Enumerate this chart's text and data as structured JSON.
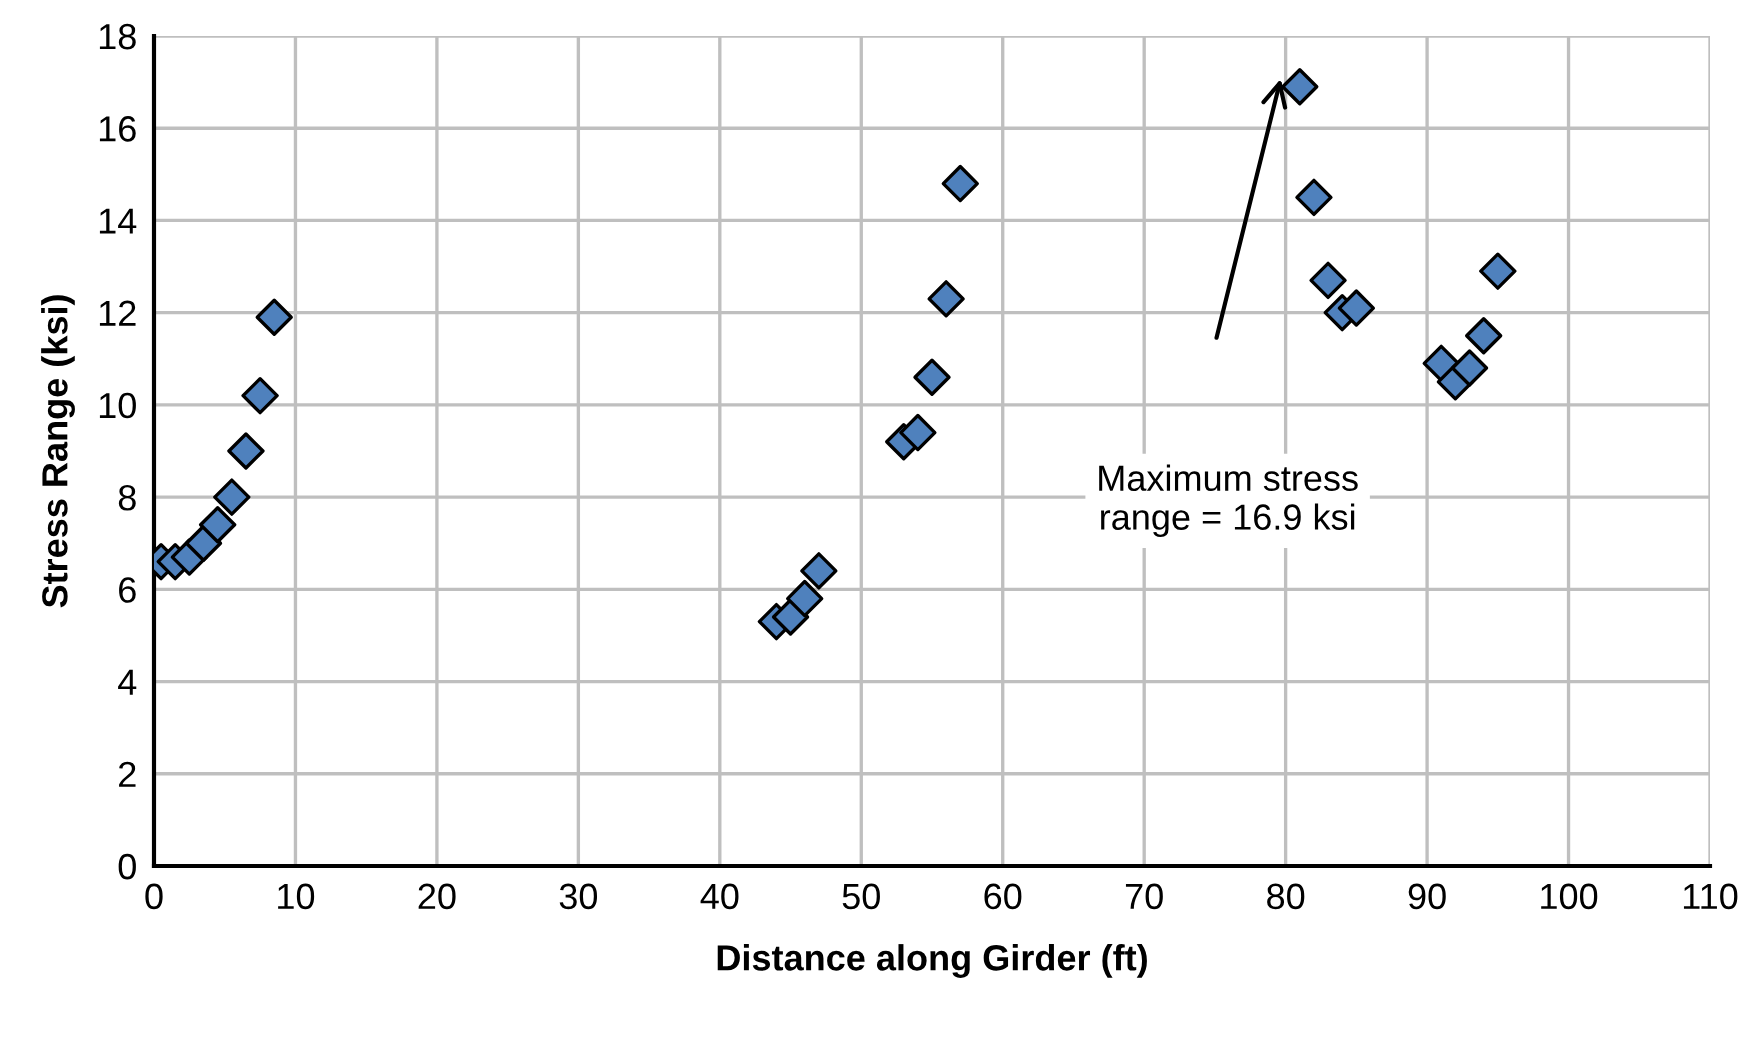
{
  "chart_data": {
    "type": "scatter",
    "xlabel": "Distance along Girder (ft)",
    "ylabel": "Stress Range (ksi)",
    "x": [
      0.5,
      1.5,
      2.5,
      3.5,
      4.5,
      5.5,
      6.5,
      7.5,
      8.5,
      44,
      45,
      46,
      47,
      53,
      54,
      55,
      56,
      57,
      81,
      82,
      83,
      84,
      85,
      91,
      92,
      93,
      94,
      95
    ],
    "values": [
      6.6,
      6.6,
      6.7,
      7.0,
      7.4,
      8.0,
      9.0,
      10.2,
      11.9,
      5.3,
      5.4,
      5.8,
      6.4,
      9.2,
      9.4,
      10.6,
      12.3,
      14.8,
      16.9,
      14.5,
      12.7,
      12.0,
      12.1,
      10.9,
      10.5,
      10.8,
      11.5,
      12.9
    ],
    "color": "#4f81bd",
    "marker": "diamond",
    "xlim": [
      0,
      110
    ],
    "xticks": [
      0,
      10,
      20,
      30,
      40,
      50,
      60,
      70,
      80,
      90,
      100,
      110
    ],
    "ylim": [
      0,
      18
    ],
    "yticks": [
      0,
      2,
      4,
      6,
      8,
      10,
      12,
      14,
      16,
      18
    ],
    "grid": true,
    "legend": false,
    "annotations": [
      "Maximum stress\nrange = 16.9 ksi"
    ]
  }
}
